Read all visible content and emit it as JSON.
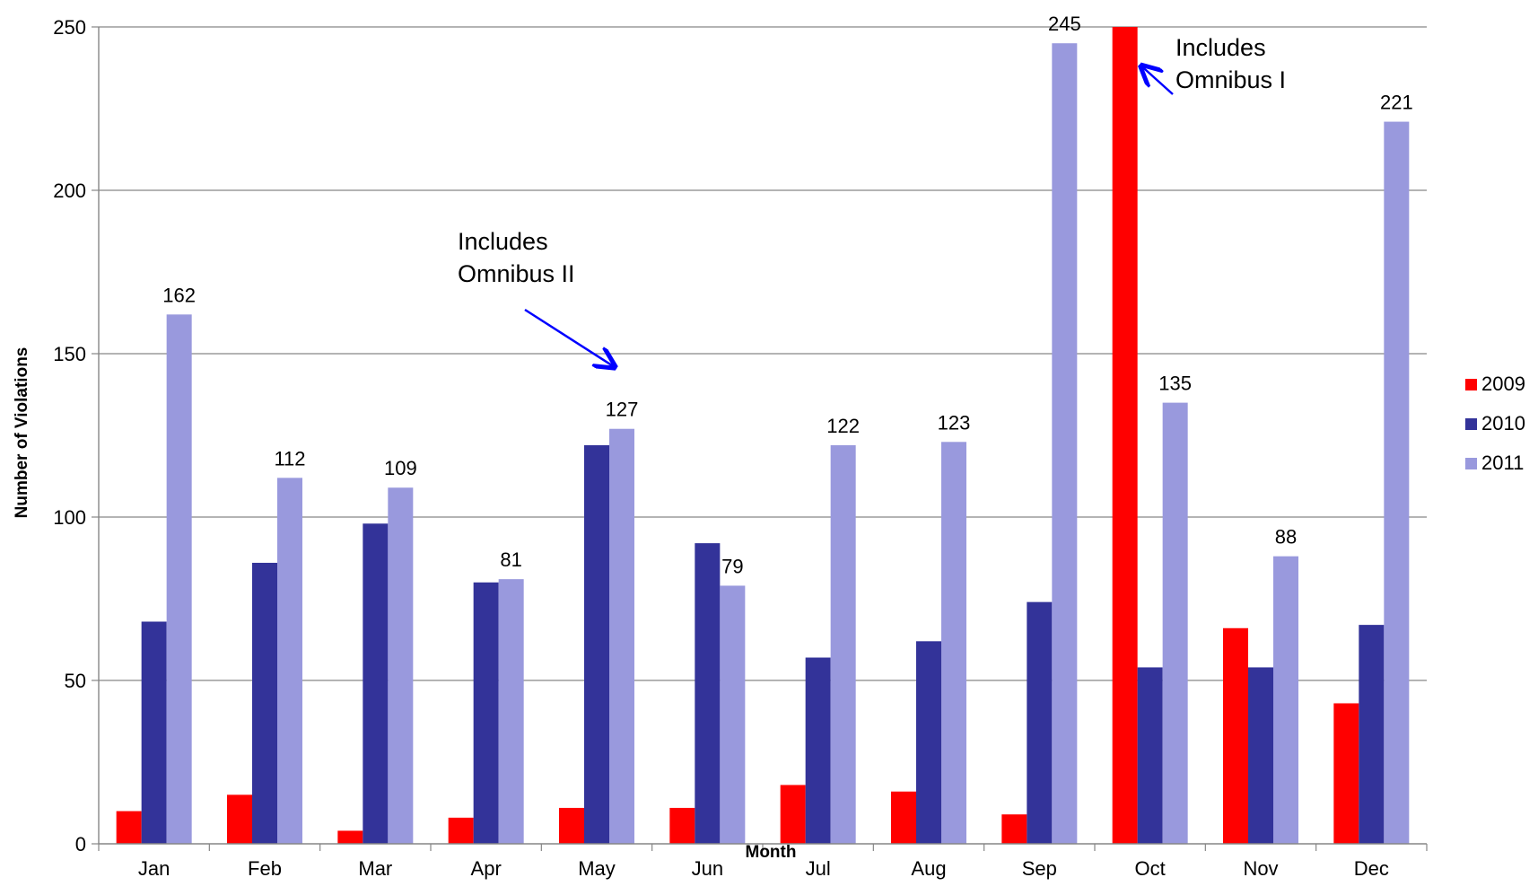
{
  "chart_data": {
    "type": "bar",
    "title": "",
    "xlabel": "Month",
    "ylabel": "Number of Violations",
    "ylim": [
      0,
      250
    ],
    "yticks": [
      0,
      50,
      100,
      150,
      200,
      250
    ],
    "grid": true,
    "legend_position": "right",
    "categories": [
      "Jan",
      "Feb",
      "Mar",
      "Apr",
      "May",
      "Jun",
      "Jul",
      "Aug",
      "Sep",
      "Oct",
      "Nov",
      "Dec"
    ],
    "series": [
      {
        "name": "2009",
        "color": "#FF0000",
        "values": [
          10,
          15,
          4,
          8,
          11,
          11,
          18,
          16,
          9,
          250,
          66,
          43
        ]
      },
      {
        "name": "2010",
        "color": "#333399",
        "values": [
          68,
          86,
          98,
          80,
          122,
          92,
          57,
          62,
          74,
          54,
          54,
          67
        ]
      },
      {
        "name": "2011",
        "color": "#9999DD",
        "values": [
          162,
          112,
          109,
          81,
          127,
          79,
          122,
          123,
          245,
          135,
          88,
          221
        ]
      }
    ],
    "data_labels_series": "2011",
    "annotations": [
      {
        "lines": [
          "Includes",
          "Omnibus II"
        ],
        "category": "May",
        "series": "2011",
        "arrow_color": "#0000FF"
      },
      {
        "lines": [
          "Includes",
          "Omnibus I"
        ],
        "category": "Oct",
        "series": "2009",
        "arrow_color": "#0000FF"
      }
    ]
  }
}
